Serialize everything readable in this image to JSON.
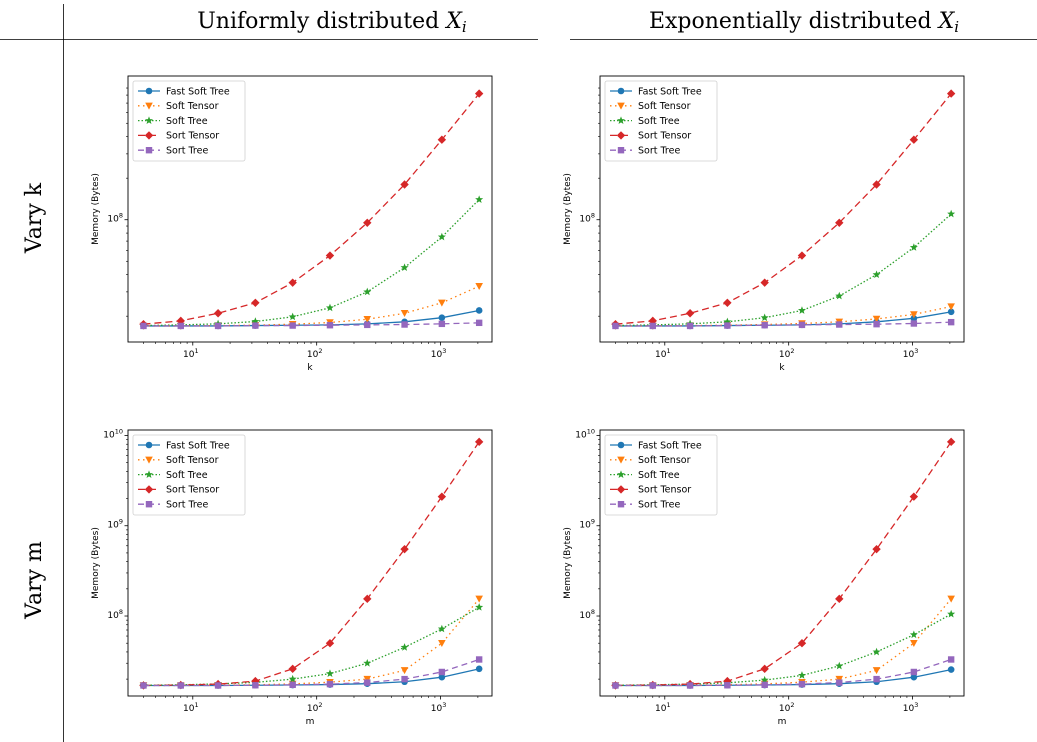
{
  "table": {
    "col_headers": [
      "Uniformly distributed",
      "Exponentially distributed"
    ],
    "col_header_var": "X",
    "col_header_sub": "i",
    "row_headers": [
      "Vary k",
      "Vary m"
    ]
  },
  "chart_data": [
    {
      "type": "line",
      "row": 0,
      "col": 0,
      "xlabel": "k",
      "ylabel": "Memory (Bytes)",
      "xscale": "log",
      "yscale": "log",
      "xlim": [
        3,
        2600
      ],
      "ylim": [
        13000000,
        1100000000
      ],
      "xticks": [
        {
          "value": 10,
          "label": "10",
          "exp": "1"
        },
        {
          "value": 100,
          "label": "10",
          "exp": "2"
        },
        {
          "value": 1000,
          "label": "10",
          "exp": "3"
        }
      ],
      "yticks": [
        {
          "value": 100000000,
          "label": "10",
          "exp": "8"
        }
      ],
      "legend": "top-left",
      "x": [
        4,
        8,
        16,
        32,
        64,
        128,
        256,
        512,
        1024,
        2048
      ],
      "series": [
        {
          "name": "Fast Soft Tree",
          "color": "#1f77b4",
          "dash": "",
          "marker": "circle",
          "values": [
            17000000,
            17000000,
            17000000,
            17100000,
            17200000,
            17300000,
            17600000,
            18200000,
            19500000,
            22000000
          ]
        },
        {
          "name": "Soft Tensor",
          "color": "#ff7f0e",
          "dash": "1.5,3.5",
          "marker": "triangle-down",
          "values": [
            17000000,
            17000000,
            17100000,
            17200000,
            17500000,
            18000000,
            19000000,
            21000000,
            25000000,
            33000000
          ]
        },
        {
          "name": "Soft Tree",
          "color": "#2ca02c",
          "dash": "1.5,2",
          "marker": "star",
          "values": [
            17100000,
            17300000,
            17600000,
            18300000,
            19800000,
            23000000,
            30000000,
            45000000,
            75000000,
            140000000
          ]
        },
        {
          "name": "Sort Tensor",
          "color": "#d62728",
          "dash": "7,4",
          "marker": "diamond",
          "values": [
            17500000,
            18500000,
            21000000,
            25000000,
            35000000,
            55000000,
            95000000,
            180000000,
            380000000,
            820000000
          ]
        },
        {
          "name": "Sort Tree",
          "color": "#9467bd",
          "dash": "6,4",
          "marker": "square",
          "values": [
            17000000,
            17000000,
            17000000,
            17100000,
            17100000,
            17200000,
            17300000,
            17400000,
            17600000,
            17900000
          ]
        }
      ]
    },
    {
      "type": "line",
      "row": 0,
      "col": 1,
      "xlabel": "k",
      "ylabel": "Memory (Bytes)",
      "xscale": "log",
      "yscale": "log",
      "xlim": [
        3,
        2600
      ],
      "ylim": [
        13000000,
        1100000000
      ],
      "xticks": [
        {
          "value": 10,
          "label": "10",
          "exp": "1"
        },
        {
          "value": 100,
          "label": "10",
          "exp": "2"
        },
        {
          "value": 1000,
          "label": "10",
          "exp": "3"
        }
      ],
      "yticks": [
        {
          "value": 100000000,
          "label": "10",
          "exp": "8"
        }
      ],
      "legend": "top-left",
      "x": [
        4,
        8,
        16,
        32,
        64,
        128,
        256,
        512,
        1024,
        2048
      ],
      "series": [
        {
          "name": "Fast Soft Tree",
          "color": "#1f77b4",
          "dash": "",
          "marker": "circle",
          "values": [
            17000000,
            17000000,
            17000000,
            17100000,
            17200000,
            17300000,
            17600000,
            18200000,
            19300000,
            21500000
          ]
        },
        {
          "name": "Soft Tensor",
          "color": "#ff7f0e",
          "dash": "1.5,3.5",
          "marker": "triangle-down",
          "values": [
            17000000,
            17000000,
            17100000,
            17200000,
            17400000,
            17700000,
            18200000,
            19100000,
            20600000,
            23500000
          ]
        },
        {
          "name": "Soft Tree",
          "color": "#2ca02c",
          "dash": "1.5,2",
          "marker": "star",
          "values": [
            17100000,
            17300000,
            17600000,
            18200000,
            19500000,
            22000000,
            28000000,
            40000000,
            63000000,
            110000000
          ]
        },
        {
          "name": "Sort Tensor",
          "color": "#d62728",
          "dash": "7,4",
          "marker": "diamond",
          "values": [
            17500000,
            18500000,
            21000000,
            25000000,
            35000000,
            55000000,
            95000000,
            180000000,
            380000000,
            820000000
          ]
        },
        {
          "name": "Sort Tree",
          "color": "#9467bd",
          "dash": "6,4",
          "marker": "square",
          "values": [
            17000000,
            17000000,
            17000000,
            17100000,
            17200000,
            17300000,
            17400000,
            17500000,
            17700000,
            18100000
          ]
        }
      ]
    },
    {
      "type": "line",
      "row": 1,
      "col": 0,
      "xlabel": "m",
      "ylabel": "Memory (Bytes)",
      "xscale": "log",
      "yscale": "log",
      "xlim": [
        3,
        2600
      ],
      "ylim": [
        13000000,
        11500000000
      ],
      "xticks": [
        {
          "value": 10,
          "label": "10",
          "exp": "1"
        },
        {
          "value": 100,
          "label": "10",
          "exp": "2"
        },
        {
          "value": 1000,
          "label": "10",
          "exp": "3"
        }
      ],
      "yticks": [
        {
          "value": 100000000,
          "label": "10",
          "exp": "8"
        },
        {
          "value": 1000000000,
          "label": "10",
          "exp": "9"
        },
        {
          "value": 10000000000,
          "label": "10",
          "exp": "10"
        }
      ],
      "legend": "top-left",
      "x": [
        4,
        8,
        16,
        32,
        64,
        128,
        256,
        512,
        1024,
        2048
      ],
      "series": [
        {
          "name": "Fast Soft Tree",
          "color": "#1f77b4",
          "dash": "",
          "marker": "circle",
          "values": [
            17000000,
            17000000,
            17000000,
            17100000,
            17200000,
            17400000,
            17800000,
            18700000,
            21000000,
            26000000
          ]
        },
        {
          "name": "Soft Tensor",
          "color": "#ff7f0e",
          "dash": "1.5,3.5",
          "marker": "triangle-down",
          "values": [
            17000000,
            17000000,
            17100000,
            17300000,
            17700000,
            18500000,
            20000000,
            25000000,
            50000000,
            155000000
          ]
        },
        {
          "name": "Soft Tree",
          "color": "#2ca02c",
          "dash": "1.5,2",
          "marker": "star",
          "values": [
            17100000,
            17300000,
            17700000,
            18400000,
            20000000,
            23000000,
            30000000,
            45000000,
            72000000,
            125000000
          ]
        },
        {
          "name": "Sort Tensor",
          "color": "#d62728",
          "dash": "7,4",
          "marker": "diamond",
          "values": [
            17000000,
            17200000,
            17600000,
            19000000,
            26000000,
            50000000,
            155000000,
            550000000,
            2100000000,
            8500000000
          ]
        },
        {
          "name": "Sort Tree",
          "color": "#9467bd",
          "dash": "6,4",
          "marker": "square",
          "values": [
            17000000,
            17000000,
            17000000,
            17100000,
            17300000,
            17600000,
            18300000,
            20000000,
            24000000,
            33000000
          ]
        }
      ]
    },
    {
      "type": "line",
      "row": 1,
      "col": 1,
      "xlabel": "m",
      "ylabel": "Memory (Bytes)",
      "xscale": "log",
      "yscale": "log",
      "xlim": [
        3,
        2600
      ],
      "ylim": [
        13000000,
        11500000000
      ],
      "xticks": [
        {
          "value": 10,
          "label": "10",
          "exp": "1"
        },
        {
          "value": 100,
          "label": "10",
          "exp": "2"
        },
        {
          "value": 1000,
          "label": "10",
          "exp": "3"
        }
      ],
      "yticks": [
        {
          "value": 100000000,
          "label": "10",
          "exp": "8"
        },
        {
          "value": 1000000000,
          "label": "10",
          "exp": "9"
        },
        {
          "value": 10000000000,
          "label": "10",
          "exp": "10"
        }
      ],
      "legend": "top-left",
      "x": [
        4,
        8,
        16,
        32,
        64,
        128,
        256,
        512,
        1024,
        2048
      ],
      "series": [
        {
          "name": "Fast Soft Tree",
          "color": "#1f77b4",
          "dash": "",
          "marker": "circle",
          "values": [
            17000000,
            17000000,
            17000000,
            17100000,
            17200000,
            17400000,
            17800000,
            18700000,
            21000000,
            25500000
          ]
        },
        {
          "name": "Soft Tensor",
          "color": "#ff7f0e",
          "dash": "1.5,3.5",
          "marker": "triangle-down",
          "values": [
            17000000,
            17000000,
            17100000,
            17300000,
            17700000,
            18500000,
            20000000,
            25000000,
            50000000,
            155000000
          ]
        },
        {
          "name": "Soft Tree",
          "color": "#2ca02c",
          "dash": "1.5,2",
          "marker": "star",
          "values": [
            17100000,
            17300000,
            17600000,
            18200000,
            19500000,
            22000000,
            28000000,
            40000000,
            62000000,
            105000000
          ]
        },
        {
          "name": "Sort Tensor",
          "color": "#d62728",
          "dash": "7,4",
          "marker": "diamond",
          "values": [
            17000000,
            17200000,
            17600000,
            19000000,
            26000000,
            50000000,
            155000000,
            550000000,
            2100000000,
            8500000000
          ]
        },
        {
          "name": "Sort Tree",
          "color": "#9467bd",
          "dash": "6,4",
          "marker": "square",
          "values": [
            17000000,
            17000000,
            17000000,
            17100000,
            17300000,
            17600000,
            18300000,
            20000000,
            24000000,
            33000000
          ]
        }
      ]
    }
  ]
}
